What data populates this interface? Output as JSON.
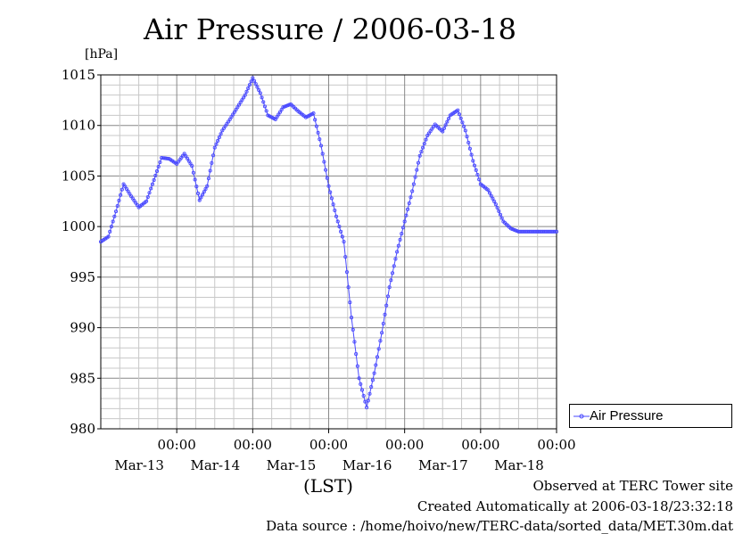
{
  "chart_data": {
    "type": "line",
    "title": "Air Pressure / 2006-03-18",
    "ylabel": "[hPa]",
    "xlabel": "(LST)",
    "ylim": [
      980,
      1015
    ],
    "yticks": [
      980,
      985,
      990,
      995,
      1000,
      1005,
      1010,
      1015
    ],
    "xticks": [
      {
        "time": "00:00",
        "date": "Mar-13"
      },
      {
        "time": "00:00",
        "date": "Mar-14"
      },
      {
        "time": "00:00",
        "date": "Mar-15"
      },
      {
        "time": "00:00",
        "date": "Mar-16"
      },
      {
        "time": "00:00",
        "date": "Mar-17"
      },
      {
        "time": "00:00",
        "date": "Mar-18"
      }
    ],
    "xlim_days": [
      -1,
      5
    ],
    "grid": true,
    "legend_position": "right",
    "series": [
      {
        "name": "Air Pressure",
        "color": "#4a4aff",
        "x_days": [
          -1.0,
          -0.9,
          -0.8,
          -0.7,
          -0.6,
          -0.5,
          -0.4,
          -0.3,
          -0.2,
          -0.1,
          0.0,
          0.1,
          0.2,
          0.3,
          0.4,
          0.5,
          0.6,
          0.7,
          0.8,
          0.9,
          1.0,
          1.1,
          1.2,
          1.3,
          1.4,
          1.5,
          1.6,
          1.7,
          1.8,
          1.9,
          2.0,
          2.1,
          2.2,
          2.3,
          2.4,
          2.5,
          2.6,
          2.7,
          2.8,
          2.9,
          3.0,
          3.1,
          3.2,
          3.3,
          3.4,
          3.5,
          3.6,
          3.7,
          3.8,
          3.9,
          4.0,
          4.1,
          4.2,
          4.3,
          4.4,
          4.5,
          4.6,
          4.7,
          4.8,
          4.9,
          5.0
        ],
        "y": [
          998.5,
          999.0,
          1001.5,
          1004.2,
          1003.0,
          1001.9,
          1002.5,
          1004.6,
          1006.8,
          1006.7,
          1006.2,
          1007.2,
          1006.0,
          1002.6,
          1004.0,
          1007.8,
          1009.5,
          1010.6,
          1011.8,
          1013.0,
          1014.7,
          1013.2,
          1011.0,
          1010.6,
          1011.8,
          1012.1,
          1011.4,
          1010.8,
          1011.2,
          1008.0,
          1004.0,
          1001.0,
          998.5,
          991.0,
          985.0,
          982.1,
          985.5,
          989.5,
          994.0,
          997.5,
          1000.5,
          1003.5,
          1007.0,
          1009.0,
          1010.1,
          1009.4,
          1011.0,
          1011.5,
          1009.5,
          1006.5,
          1004.2,
          1003.6,
          1002.2,
          1000.5,
          999.8,
          999.5,
          999.5,
          999.5,
          999.5,
          999.5,
          999.5
        ]
      }
    ]
  },
  "footer": {
    "line1": "Observed at TERC Tower site",
    "line2": "Created Automatically at 2006-03-18/23:32:18",
    "line3": "Data source : /home/hoivo/new/TERC-data/sorted_data/MET.30m.dat"
  }
}
